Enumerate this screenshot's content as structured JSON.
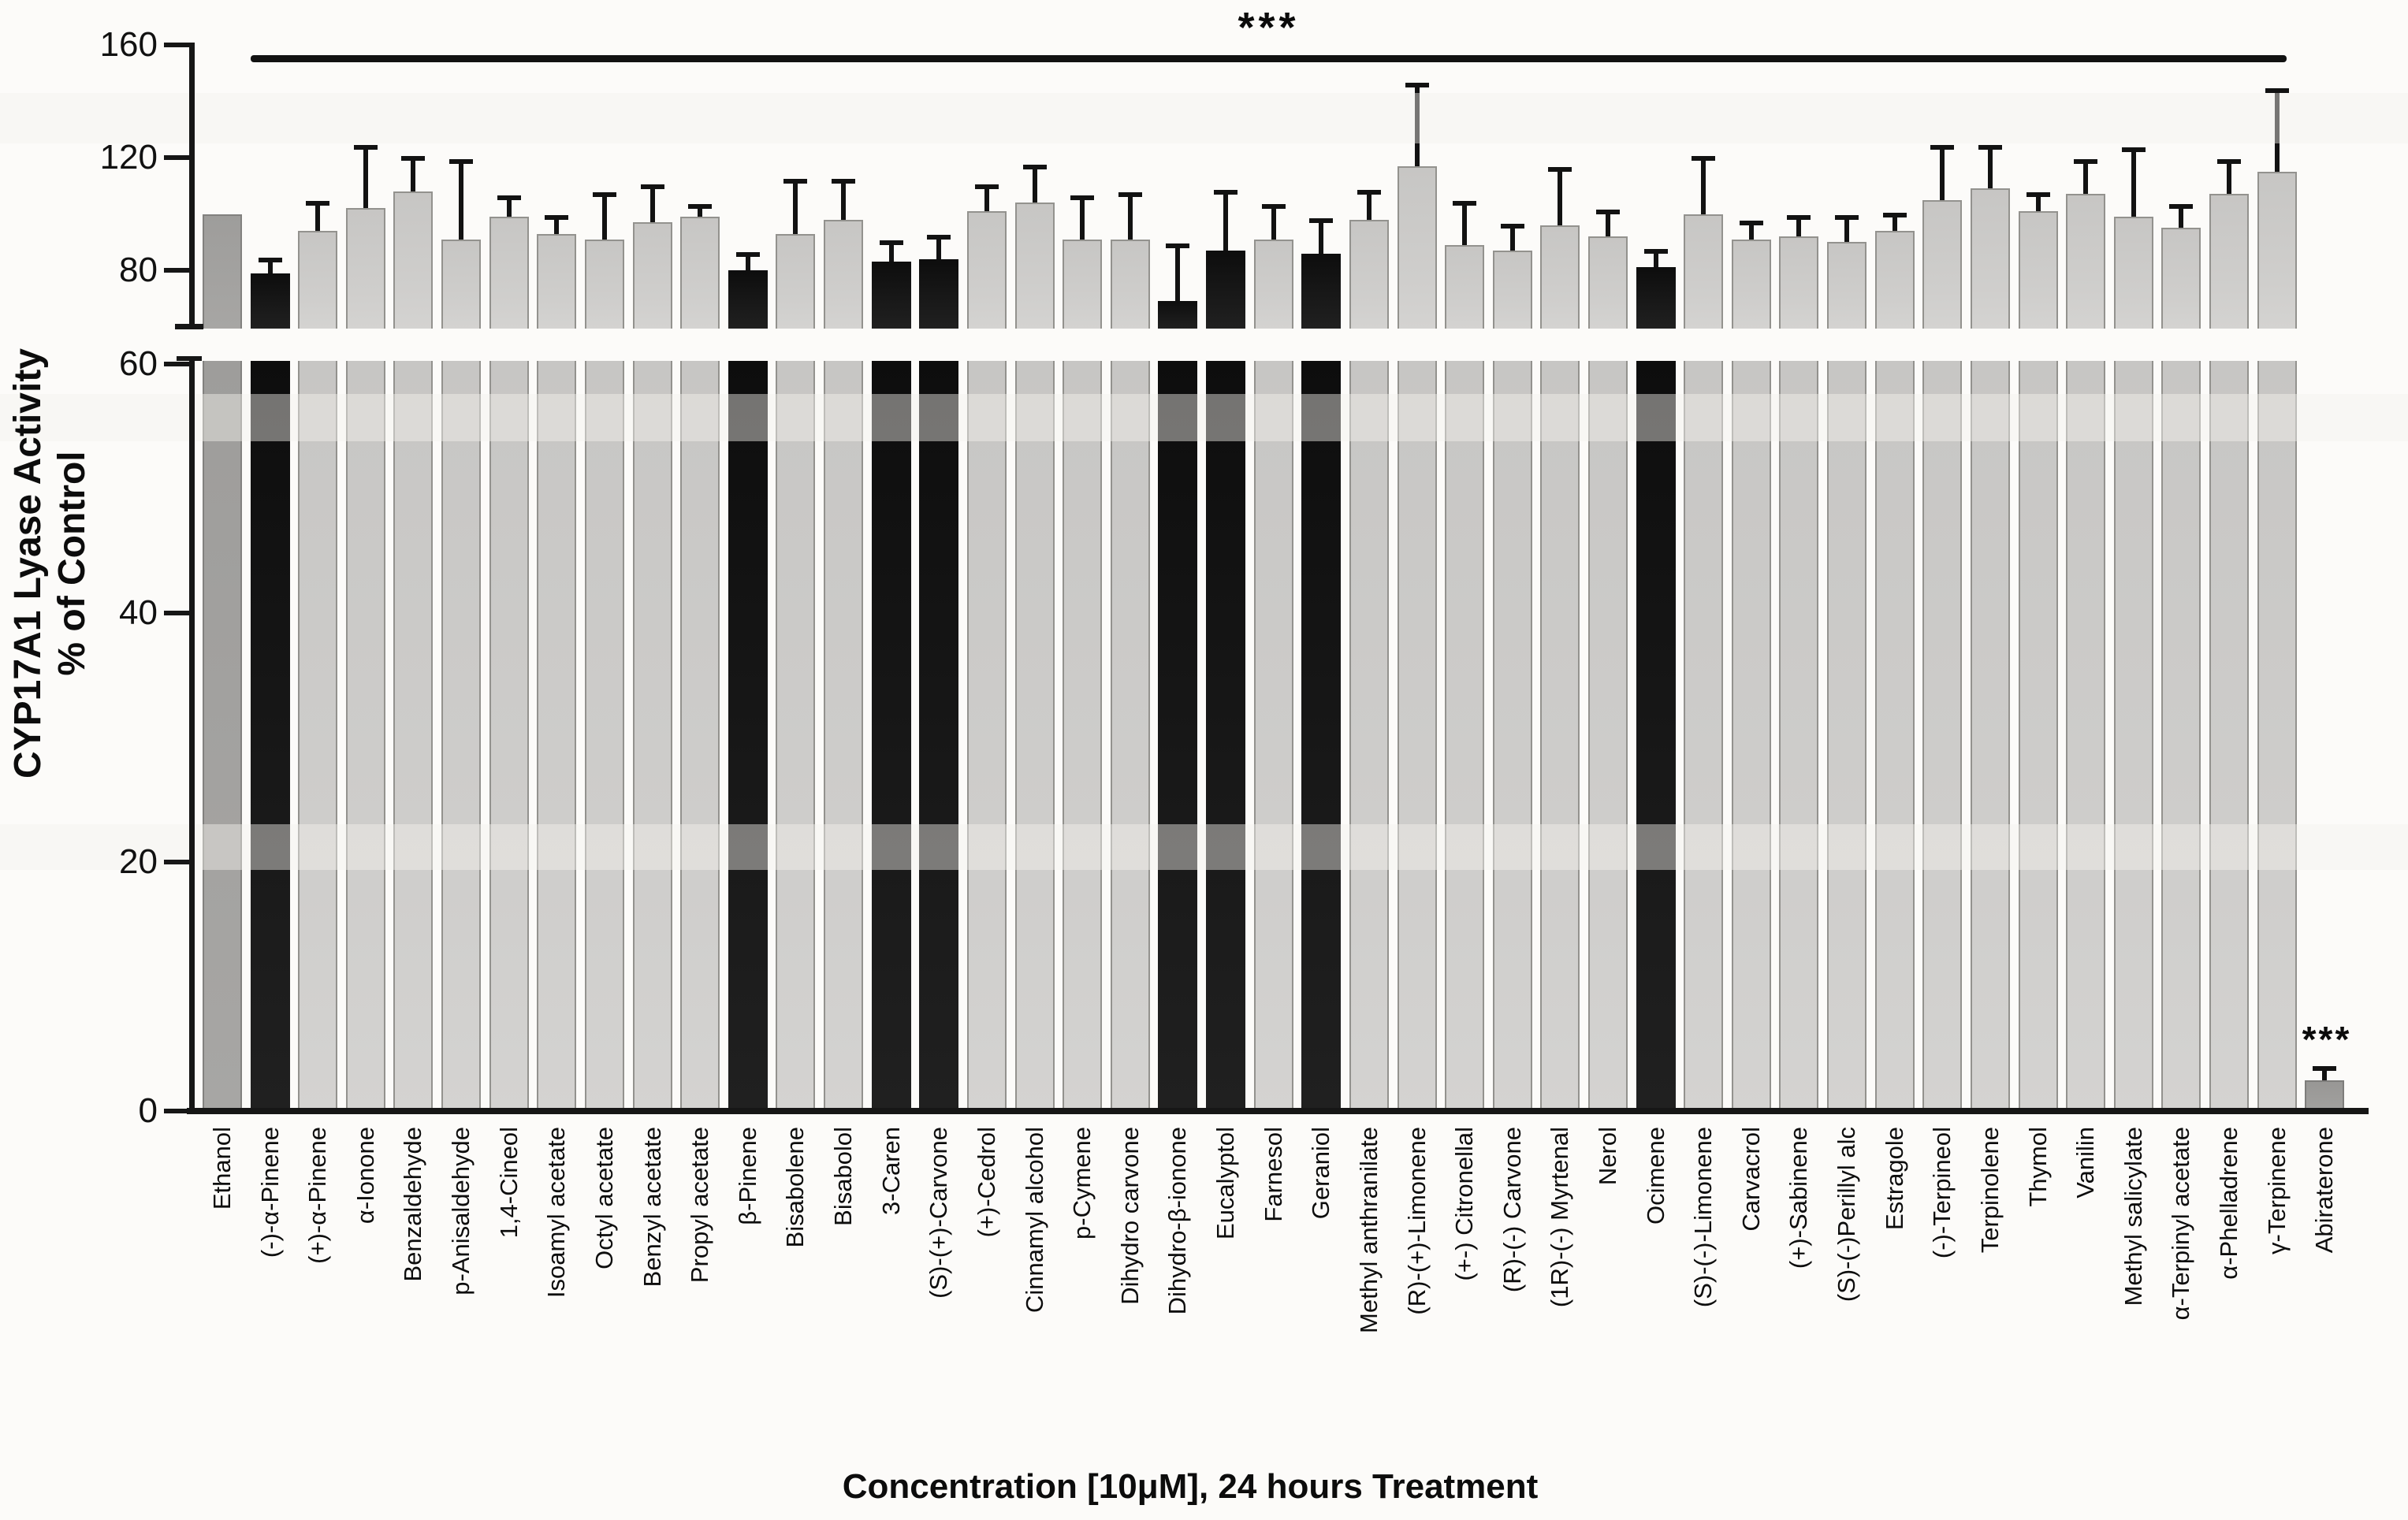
{
  "figure": {
    "y_axis": {
      "title_line1": "CYP17A1 Lyase Activity",
      "title_line2": "% of Control",
      "top_ticks": [
        160,
        120,
        80
      ],
      "bottom_ticks": [
        60,
        40,
        20,
        0
      ]
    },
    "x_axis": {
      "title": "Concentration [10μM], 24 hours Treatment"
    },
    "significance": {
      "overall_stars": "***",
      "abiraterone_stars": "***"
    }
  },
  "chart_data": {
    "type": "bar",
    "title": "",
    "xlabel": "Concentration [10μM], 24 hours Treatment",
    "ylabel": "CYP17A1 Lyase Activity % of Control",
    "grid": false,
    "legend": null,
    "axis_break": {
      "lower_max": 60,
      "upper_min": 60
    },
    "ylim_top_segment": [
      60,
      160
    ],
    "ylim_bottom_segment": [
      0,
      60
    ],
    "y_ticks_top": [
      160,
      120,
      80
    ],
    "y_ticks_bottom": [
      60,
      40,
      20,
      0
    ],
    "categories": [
      "Ethanol",
      "(-)-α-Pinene",
      "(+)-α-Pinene",
      "α-Ionone",
      "Benzaldehyde",
      "p-Anisaldehyde",
      "1,4-Cineol",
      "Isoamyl acetate",
      "Octyl acetate",
      "Benzyl acetate",
      "Propyl acetate",
      "β-Pinene",
      "Bisabolene",
      "Bisabolol",
      "3-Caren",
      "(S)-(+)-Carvone",
      "(+)-Cedrol",
      "Cinnamyl alcohol",
      "p-Cymene",
      "Dihydro carvone",
      "Dihydro-β-ionone",
      "Eucalyptol",
      "Farnesol",
      "Geraniol",
      "Methyl anthranilate",
      "(R)-(+)-Limonene",
      "(+-) Citronellal",
      "(R)-(-) Carvone",
      "(1R)-(-) Myrtenal",
      "Nerol",
      "Ocimene",
      "(S)-(-)-Limonene",
      "Carvacrol",
      "(+)-Sabinene",
      "(S)-(-)Perillyl alc",
      "Estragole",
      "(-)-Terpineol",
      "Terpinolene",
      "Thymol",
      "Vanilin",
      "Methyl salicylate",
      "α-Terpinyl acetate",
      "α-Phelladrene",
      "γ-Terpinene",
      "Abiraterone"
    ],
    "values": [
      100,
      79,
      94,
      102,
      108,
      91,
      99,
      93,
      91,
      97,
      99,
      80,
      93,
      98,
      83,
      84,
      101,
      104,
      91,
      91,
      69,
      87,
      91,
      86,
      98,
      117,
      89,
      87,
      96,
      92,
      81,
      100,
      91,
      92,
      90,
      94,
      105,
      109,
      101,
      107,
      99,
      95,
      107,
      115,
      2.5
    ],
    "errors_plus": [
      null,
      5,
      10,
      22,
      12,
      28,
      7,
      6,
      16,
      13,
      4,
      6,
      19,
      14,
      7,
      8,
      9,
      13,
      15,
      16,
      20,
      21,
      12,
      12,
      10,
      29,
      15,
      9,
      20,
      9,
      6,
      20,
      6,
      7,
      9,
      6,
      19,
      15,
      6,
      12,
      24,
      8,
      12,
      29,
      1
    ],
    "bar_styles": [
      "control",
      "black",
      "light",
      "light",
      "light",
      "light",
      "light",
      "light",
      "light",
      "light",
      "light",
      "black",
      "light",
      "light",
      "black",
      "black",
      "light",
      "light",
      "light",
      "light",
      "black",
      "black",
      "light",
      "black",
      "light",
      "light",
      "light",
      "light",
      "light",
      "light",
      "black",
      "light",
      "light",
      "light",
      "light",
      "light",
      "light",
      "light",
      "light",
      "light",
      "light",
      "light",
      "light",
      "light",
      "dark"
    ],
    "style_colors": {
      "control": "#a1a09e",
      "light": "#cccbc9",
      "black": "#121212",
      "dark": "#9b9a98",
      "axis": "#161616"
    },
    "annotations": [
      {
        "id": "overall",
        "text": "***",
        "kind": "significance-line",
        "from_category": "(-)-α-Pinene",
        "to_category": "γ-Terpinene"
      },
      {
        "id": "abiraterone",
        "text": "***",
        "kind": "significance-stars",
        "category": "Abiraterone"
      }
    ]
  }
}
